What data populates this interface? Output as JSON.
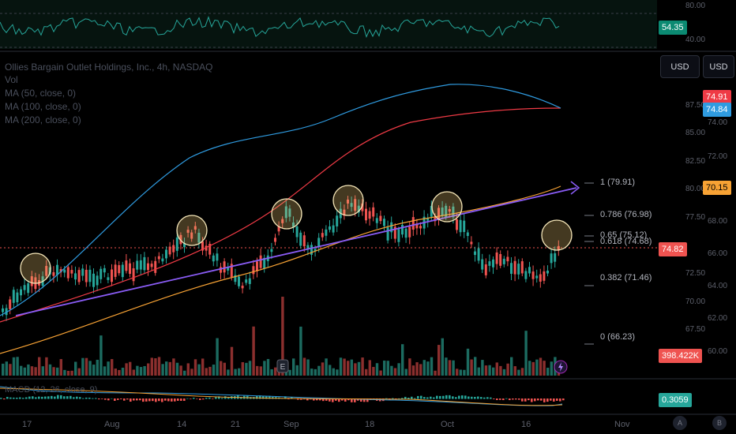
{
  "header": {
    "symbol_title": "Ollies Bargain Outlet Holdings, Inc., 4h, NASDAQ",
    "indicators": [
      "Vol",
      "MA (50, close, 0)",
      "MA (100, close, 0)",
      "MA (200, close, 0)"
    ],
    "currency_buttons": [
      "USD",
      "USD"
    ]
  },
  "rsi_panel": {
    "value_tag": "54.35",
    "scale_top": "80.00",
    "scale_bottom": "40.00",
    "colors": {
      "line": "#26a69a",
      "tag_bg": "#0b8a72"
    }
  },
  "price_axis": {
    "left_col": [
      "87.50",
      "85.00",
      "82.50",
      "80.00",
      "77.50",
      "72.50",
      "70.00",
      "67.50"
    ],
    "right_col": [
      "74.00",
      "72.00",
      "68.00",
      "66.00",
      "64.00",
      "62.00",
      "60.00"
    ]
  },
  "tags": {
    "ma_red": "74.91",
    "ma_blue": "74.84",
    "ma_orange": "70.15",
    "price": "74.82",
    "volume": "398.422K",
    "macd": "0.3059"
  },
  "fib_levels": [
    {
      "label": "1 (79.91)"
    },
    {
      "label": "0.786 (76.98)"
    },
    {
      "label": "0.65 (75.12)"
    },
    {
      "label": "0.618 (74.68)"
    },
    {
      "label": "0.382 (71.46)"
    },
    {
      "label": "0 (66.23)"
    }
  ],
  "macd_panel": {
    "legend": "MACD (12, 26, close, 9)"
  },
  "x_axis": {
    "dates": [
      "17",
      "Aug",
      "14",
      "21",
      "Sep",
      "18",
      "Oct",
      "16",
      "Nov"
    ]
  },
  "footer_buttons": [
    "A",
    "B"
  ],
  "colors": {
    "up": "#26a69a",
    "down": "#ef5350",
    "ma50": "#f7a234",
    "ma100": "#ef3a45",
    "ma200": "#2f9be0",
    "trend": "#8a5cf6",
    "circle": "#f5e6b8",
    "price_line": "#ef5350"
  },
  "chart_data": {
    "type": "candlestick",
    "timeframe": "4h",
    "x": [
      "17",
      "Aug",
      "14",
      "21",
      "Sep",
      "18",
      "Oct",
      "16"
    ],
    "close_approx": [
      67.5,
      70.0,
      71.5,
      73.5,
      76.0,
      72.5,
      74.0,
      78.5,
      77.0,
      76.0,
      77.5,
      73.0,
      72.0,
      71.0,
      72.5,
      74.8
    ],
    "last_price": 74.82,
    "moving_averages": [
      {
        "name": "MA (50, close, 0)",
        "last": 70.15
      },
      {
        "name": "MA (100, close, 0)",
        "last": 74.91
      },
      {
        "name": "MA (200, close, 0)",
        "last": 74.84
      }
    ],
    "fibonacci": [
      {
        "ratio": 1,
        "price": 79.91
      },
      {
        "ratio": 0.786,
        "price": 76.98
      },
      {
        "ratio": 0.65,
        "price": 75.12
      },
      {
        "ratio": 0.618,
        "price": 74.68
      },
      {
        "ratio": 0.382,
        "price": 71.46
      },
      {
        "ratio": 0,
        "price": 66.23
      }
    ],
    "rsi_last": 54.35,
    "volume_last": "398.422K",
    "macd_last": 0.3059
  }
}
